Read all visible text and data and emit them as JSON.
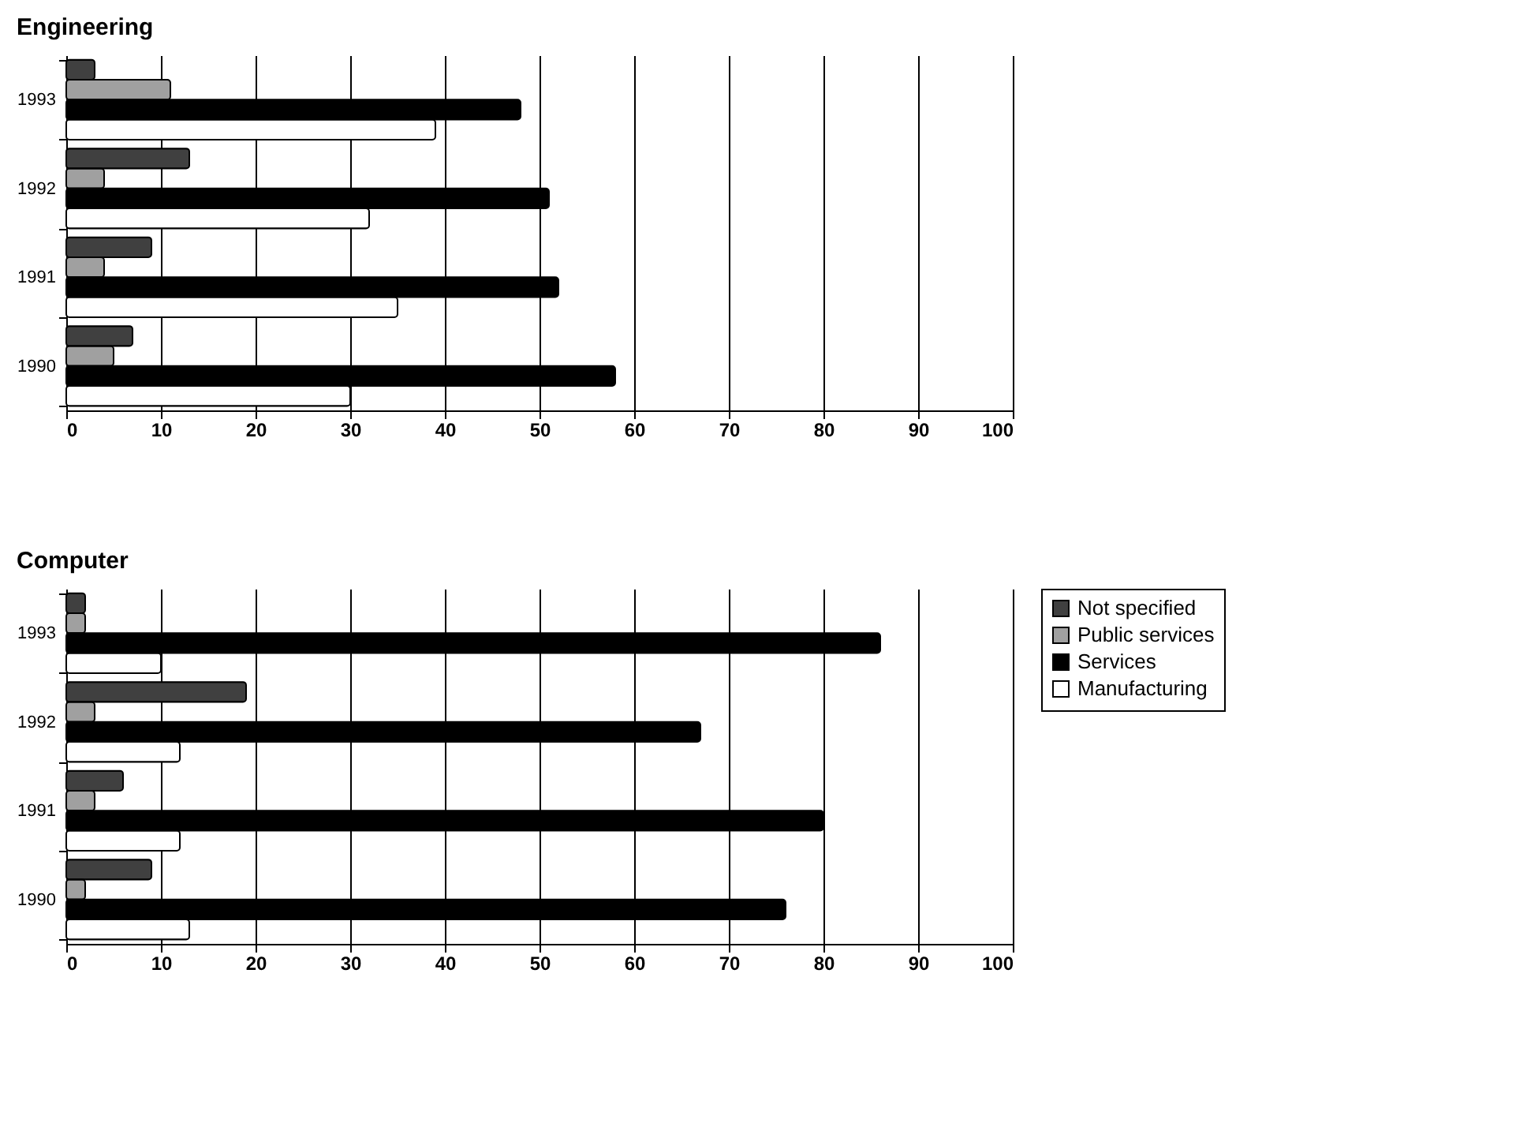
{
  "chart_data": [
    {
      "type": "bar",
      "orientation": "horizontal",
      "title": "Engineering",
      "categories": [
        "1993",
        "1992",
        "1991",
        "1990"
      ],
      "xlim": [
        0,
        100
      ],
      "xticks": [
        0,
        10,
        20,
        30,
        40,
        50,
        60,
        70,
        80,
        90,
        100
      ],
      "grid": "x",
      "legend": false,
      "series": [
        {
          "color": "#404040",
          "values": [
            3,
            13,
            9,
            7
          ]
        },
        {
          "color": "#a0a0a0",
          "values": [
            11,
            4,
            4,
            5
          ]
        },
        {
          "color": "#000000",
          "values": [
            48,
            51,
            52,
            58
          ]
        },
        {
          "color": "#ffffff",
          "values": [
            39,
            32,
            35,
            30
          ]
        }
      ]
    },
    {
      "type": "bar",
      "orientation": "horizontal",
      "title": "Computer",
      "categories": [
        "1993",
        "1992",
        "1991",
        "1990"
      ],
      "xlim": [
        0,
        100
      ],
      "xticks": [
        0,
        10,
        20,
        30,
        40,
        50,
        60,
        70,
        80,
        90,
        100
      ],
      "grid": "x",
      "legend": "right",
      "series": [
        {
          "name": "Not specified",
          "color": "#404040",
          "values": [
            2,
            19,
            6,
            9
          ]
        },
        {
          "name": "Public services",
          "color": "#a0a0a0",
          "values": [
            2,
            3,
            3,
            2
          ]
        },
        {
          "name": "Services",
          "color": "#000000",
          "values": [
            86,
            67,
            80,
            76
          ]
        },
        {
          "name": "Manufacturing",
          "color": "#ffffff",
          "values": [
            10,
            12,
            12,
            13
          ]
        }
      ]
    }
  ]
}
